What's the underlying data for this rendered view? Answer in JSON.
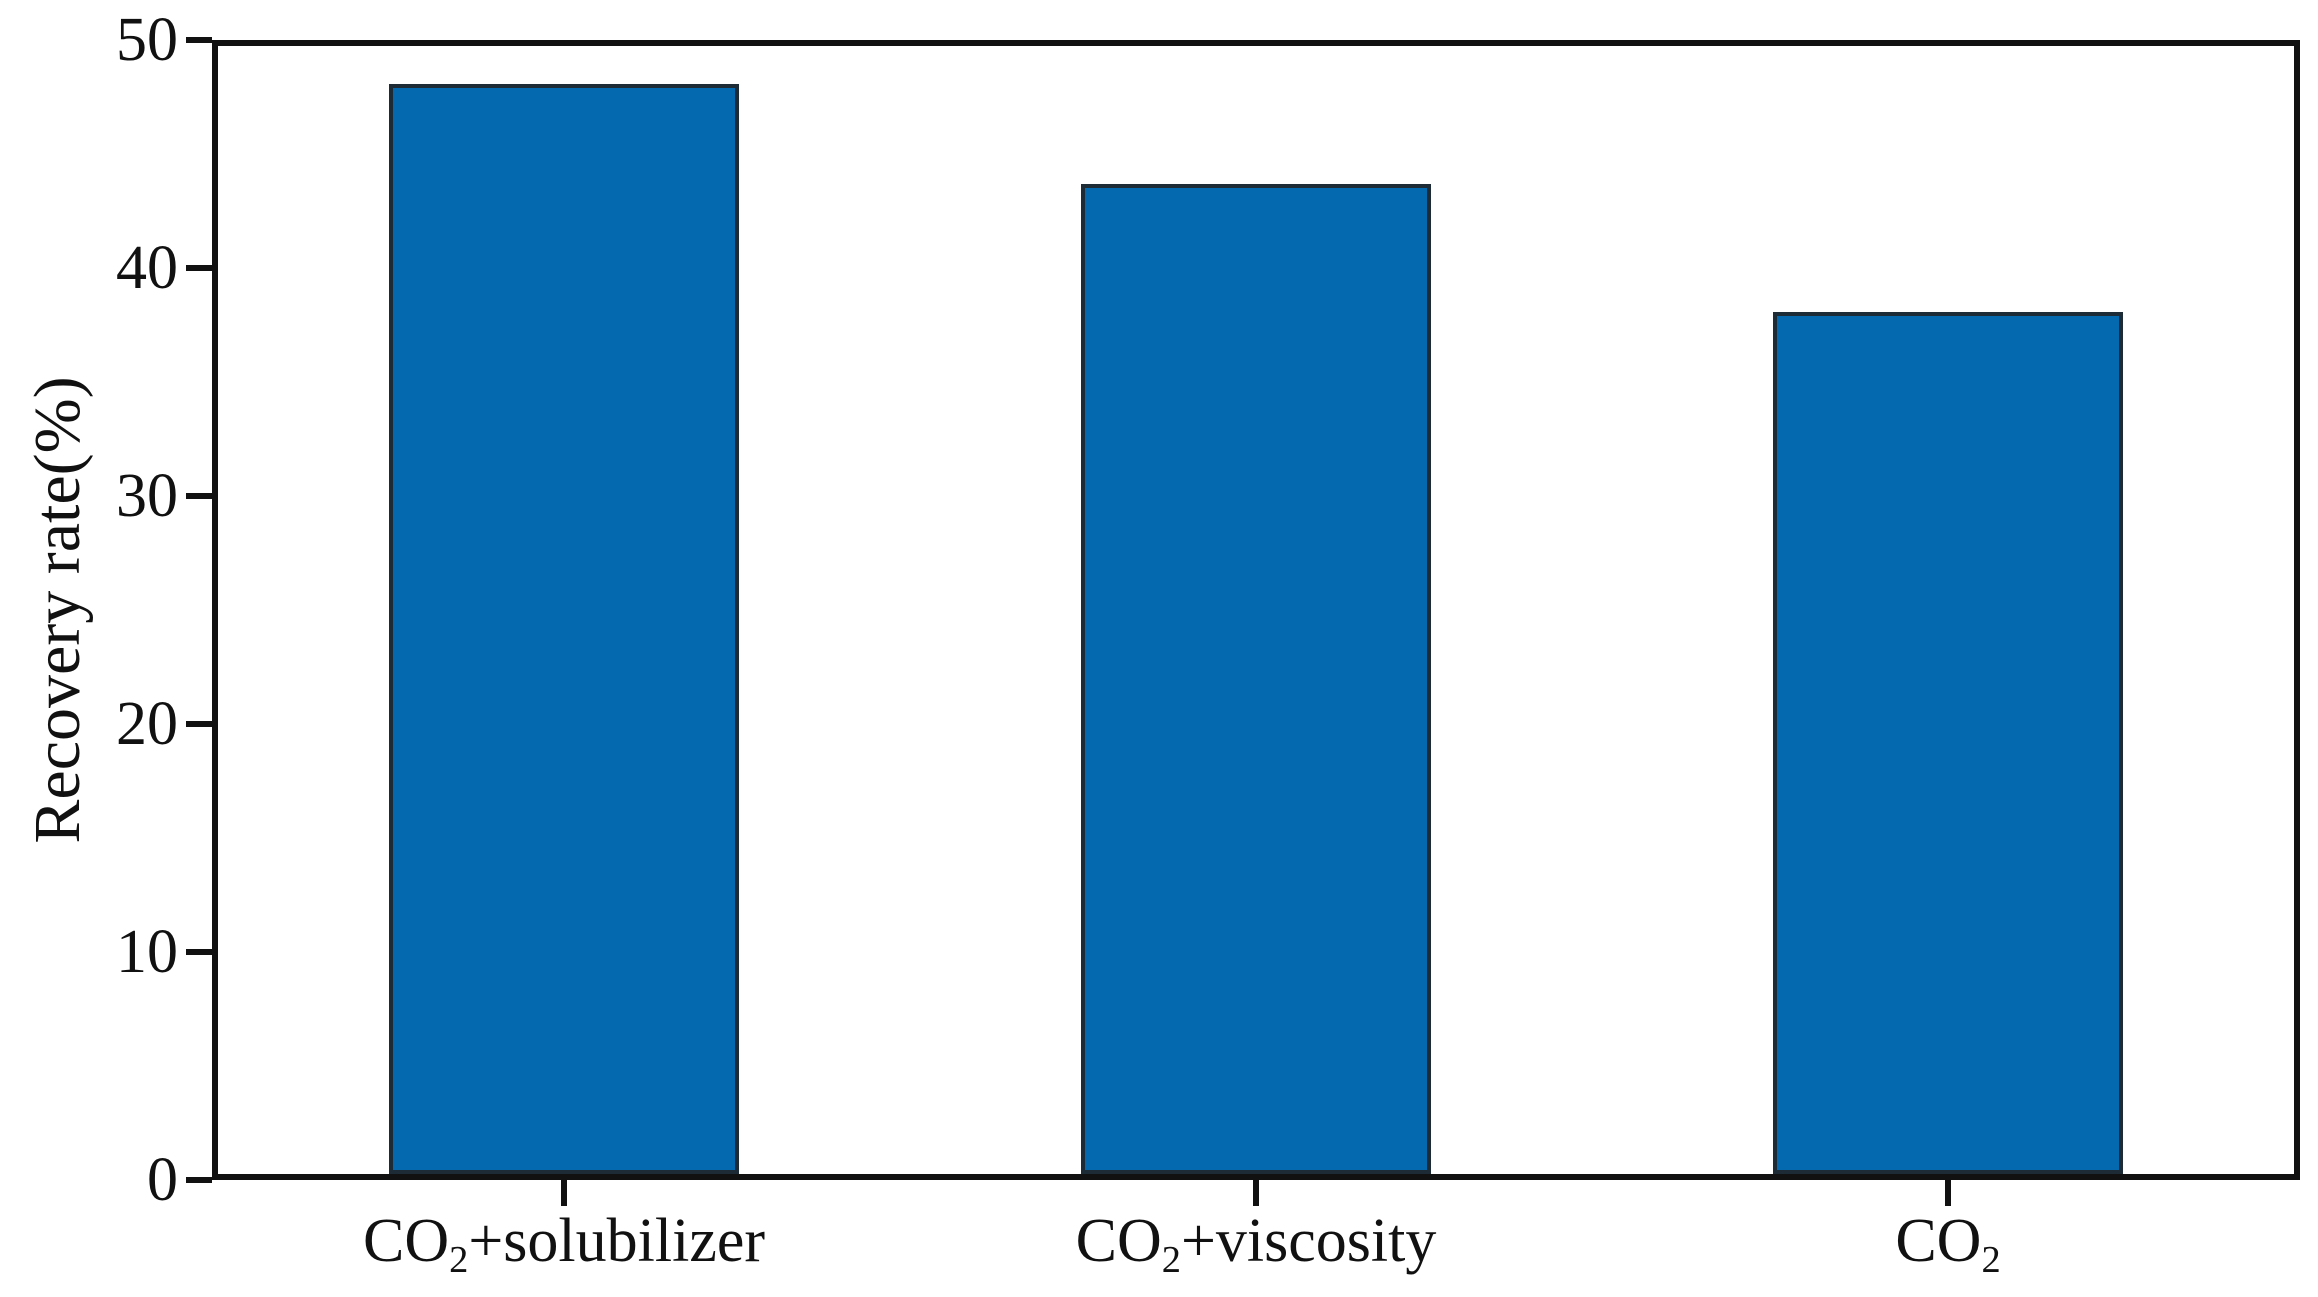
{
  "chart_data": {
    "type": "bar",
    "title": "",
    "xlabel": "",
    "ylabel": "Recovery rate(%)",
    "ylim": [
      0,
      50
    ],
    "yticks": [
      0,
      10,
      20,
      30,
      40,
      50
    ],
    "grid": false,
    "legend_position": "none",
    "categories": [
      "CO2+solubilizer",
      "CO2+viscosity",
      "CO2"
    ],
    "categories_rich": [
      [
        {
          "t": "CO"
        },
        {
          "t": "2",
          "sub": true
        },
        {
          "t": "+solubilizer"
        }
      ],
      [
        {
          "t": "CO"
        },
        {
          "t": "2",
          "sub": true
        },
        {
          "t": "+viscosity"
        }
      ],
      [
        {
          "t": "CO"
        },
        {
          "t": "2",
          "sub": true
        }
      ]
    ],
    "values": [
      48.3,
      43.9,
      38.2
    ],
    "bar_fill_color": "#0569b0",
    "bar_edge_color": "#1c2b36",
    "axis_color": "#111111",
    "bar_width_fraction_of_slot": 0.505
  }
}
